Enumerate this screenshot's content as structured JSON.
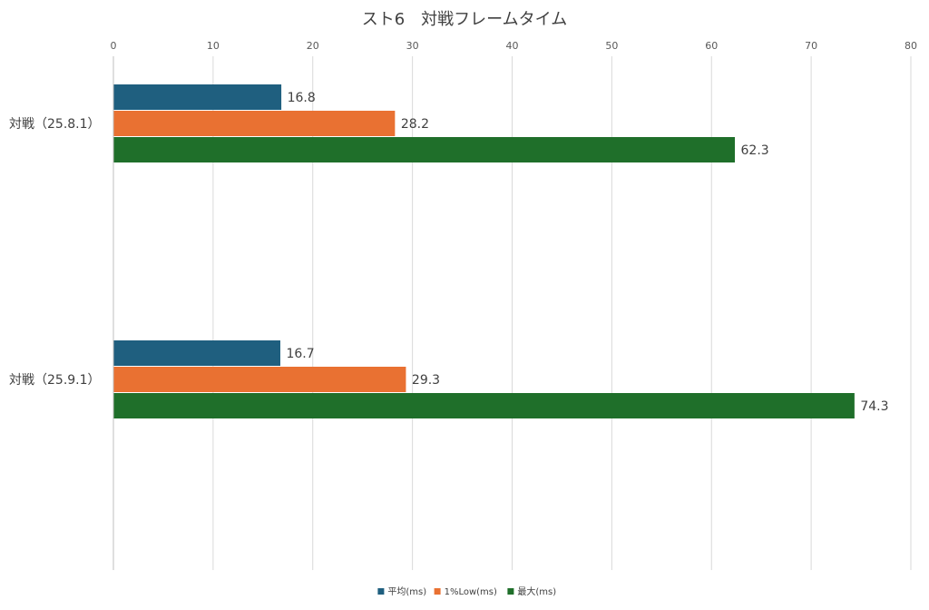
{
  "chart_data": {
    "type": "bar",
    "orientation": "horizontal",
    "title": "スト6　対戦フレームタイム",
    "xlabel": "",
    "ylabel": "",
    "xlim": [
      0,
      80
    ],
    "x_ticks": [
      0,
      10,
      20,
      30,
      40,
      50,
      60,
      70,
      80
    ],
    "x_axis_position": "top",
    "grid": true,
    "legend_position": "bottom",
    "categories": [
      "対戦（25.8.1）",
      "対戦（25.9.1）"
    ],
    "series": [
      {
        "name": "平均(ms)",
        "values": [
          16.8,
          16.7
        ],
        "color": "#1f5f7f"
      },
      {
        "name": "1%Low(ms)",
        "values": [
          28.2,
          29.3
        ],
        "color": "#e97132"
      },
      {
        "name": "最大(ms)",
        "values": [
          62.3,
          74.3
        ],
        "color": "#1f6f2a"
      }
    ]
  }
}
